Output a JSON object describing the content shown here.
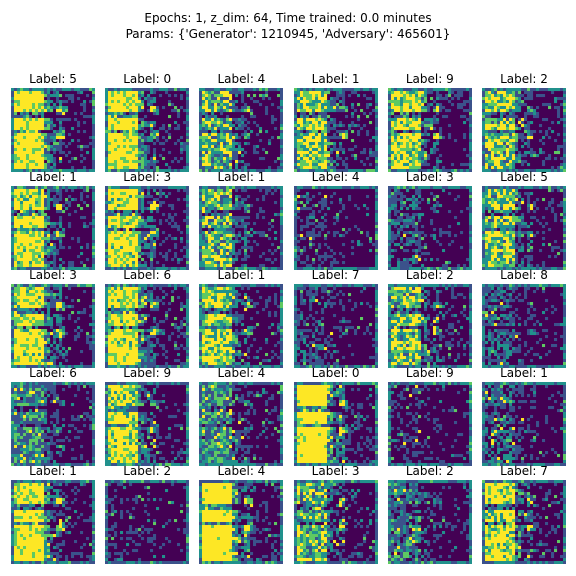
{
  "title": {
    "line1": "Epochs: 1, z_dim: 64, Time trained: 0.0 minutes",
    "line2": "Params: {'Generator': 1210945, 'Adversary': 465601}"
  },
  "colors": {
    "low": "#440154",
    "mid": "#3b528b",
    "teal": "#21918c",
    "green": "#5ec962",
    "high": "#fde725"
  },
  "samples": [
    {
      "label": "Label: 5",
      "brightness": 0.8
    },
    {
      "label": "Label: 0",
      "brightness": 0.8
    },
    {
      "label": "Label: 4",
      "brightness": 0.55
    },
    {
      "label": "Label: 1",
      "brightness": 0.65
    },
    {
      "label": "Label: 9",
      "brightness": 0.7
    },
    {
      "label": "Label: 2",
      "brightness": 0.6
    },
    {
      "label": "Label: 1",
      "brightness": 0.75
    },
    {
      "label": "Label: 3",
      "brightness": 0.75
    },
    {
      "label": "Label: 1",
      "brightness": 0.55
    },
    {
      "label": "Label: 4",
      "brightness": 0.15
    },
    {
      "label": "Label: 3",
      "brightness": 0.25
    },
    {
      "label": "Label: 5",
      "brightness": 0.6
    },
    {
      "label": "Label: 3",
      "brightness": 0.75
    },
    {
      "label": "Label: 6",
      "brightness": 0.75
    },
    {
      "label": "Label: 1",
      "brightness": 0.65
    },
    {
      "label": "Label: 7",
      "brightness": 0.2
    },
    {
      "label": "Label: 2",
      "brightness": 0.6
    },
    {
      "label": "Label: 8",
      "brightness": 0.3
    },
    {
      "label": "Label: 6",
      "brightness": 0.45
    },
    {
      "label": "Label: 9",
      "brightness": 0.7
    },
    {
      "label": "Label: 4",
      "brightness": 0.45
    },
    {
      "label": "Label: 0",
      "brightness": 0.9
    },
    {
      "label": "Label: 9",
      "brightness": 0.15
    },
    {
      "label": "Label: 1",
      "brightness": 0.3
    },
    {
      "label": "Label: 1",
      "brightness": 0.8
    },
    {
      "label": "Label: 2",
      "brightness": 0.08
    },
    {
      "label": "Label: 4",
      "brightness": 0.9
    },
    {
      "label": "Label: 3",
      "brightness": 0.55
    },
    {
      "label": "Label: 2",
      "brightness": 0.35
    },
    {
      "label": "Label: 7",
      "brightness": 0.7
    }
  ]
}
